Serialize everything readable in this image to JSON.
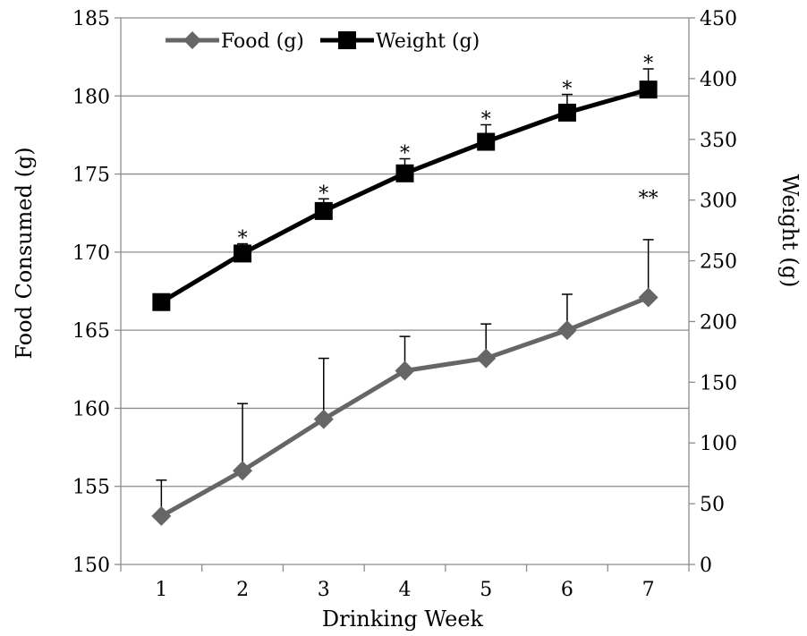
{
  "chart_data": {
    "type": "line",
    "xlabel": "Drinking Week",
    "ylabel_left": "Food Consumed (g)",
    "ylabel_right": "Weight (g)",
    "categories": [
      "1",
      "2",
      "3",
      "4",
      "5",
      "6",
      "7"
    ],
    "ylim_left": [
      150,
      185
    ],
    "yticks_left": [
      150,
      155,
      160,
      165,
      170,
      175,
      180,
      185
    ],
    "ylim_right": [
      0,
      450
    ],
    "yticks_right": [
      0,
      50,
      100,
      150,
      200,
      250,
      300,
      350,
      400,
      450
    ],
    "grid": "horizontal",
    "legend": "top-left",
    "series": [
      {
        "name": "Food (g)",
        "axis": "left",
        "marker": "diamond",
        "color": "#666666",
        "values": [
          153.1,
          156.0,
          159.3,
          162.4,
          163.2,
          165.0,
          167.1
        ],
        "error_upper": [
          155.4,
          160.3,
          163.2,
          164.6,
          165.4,
          167.3,
          170.8
        ]
      },
      {
        "name": "Weight (g)",
        "axis": "right",
        "marker": "square",
        "color": "#000000",
        "values": [
          216,
          256,
          291,
          322,
          348,
          372,
          391
        ],
        "error_upper": [
          222,
          264,
          301,
          334,
          362,
          387,
          408
        ]
      }
    ],
    "annotations": [
      {
        "x": "2",
        "text": "*"
      },
      {
        "x": "3",
        "text": "*"
      },
      {
        "x": "4",
        "text": "*"
      },
      {
        "x": "5",
        "text": "*"
      },
      {
        "x": "6",
        "text": "*"
      },
      {
        "x": "7",
        "text": "*"
      },
      {
        "x": "7",
        "text": "**",
        "series": "Food (g)"
      }
    ]
  }
}
